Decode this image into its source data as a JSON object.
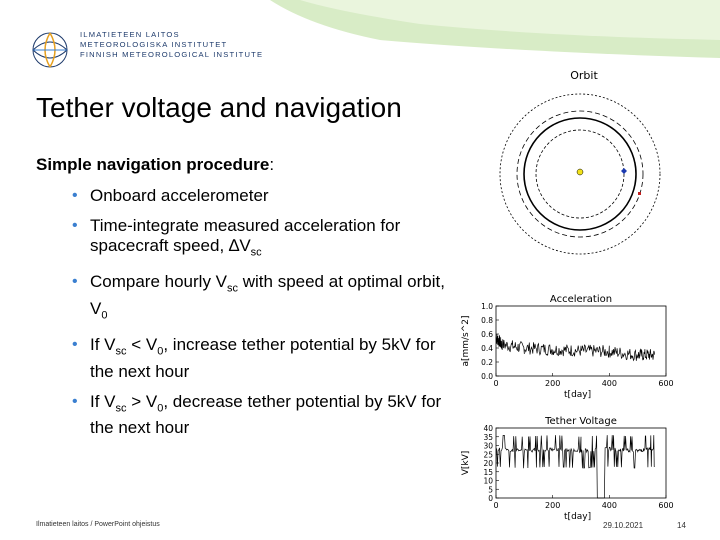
{
  "header": {
    "logo": "fmi-logo-icon",
    "institute_lines": [
      "ILMATIETEEN LAITOS",
      "METEOROLOGISKA INSTITUTET",
      "FINNISH METEOROLOGICAL INSTITUTE"
    ],
    "accent_color": "#c9e4b3"
  },
  "slide": {
    "title": "Tether voltage and navigation",
    "subtitle_bold": "Simple navigation procedure",
    "subtitle_rest": ":",
    "bullets": [
      {
        "pre": "Onboard accelerometer"
      },
      {
        "pre": "Time-integrate measured acceleration for spacecraft speed, ∆V",
        "sub": "sc",
        "post": ""
      },
      {
        "pre": "Compare hourly V",
        "sub": "sc",
        "post": " with speed at optimal orbit, V",
        "sub2": "0"
      },
      {
        "pre": "If V",
        "sub": "sc",
        "post": " < V",
        "sub2": "0",
        "post2": ", increase tether potential by 5kV for the next hour"
      },
      {
        "pre": "If V",
        "sub": "sc",
        "post": " > V",
        "sub2": "0",
        "post2": ", decrease tether potential by 5kV for the next hour"
      }
    ]
  },
  "orbit_panel": {
    "title": "Orbit"
  },
  "chart_data": [
    {
      "type": "line",
      "title": "Acceleration",
      "xlabel": "t[day]",
      "ylabel": "a[mm/s^2]",
      "xlim": [
        0,
        600
      ],
      "ylim": [
        0.0,
        1.0
      ],
      "xticks": [
        "0",
        "200",
        "400",
        "600"
      ],
      "yticks": [
        "0.0",
        "0.2",
        "0.4",
        "0.6",
        "0.8",
        "1.0"
      ],
      "series": [
        {
          "values_description": "noisy",
          "x": [
            0,
            20,
            100,
            200,
            300,
            400,
            500,
            560
          ],
          "y": [
            0.55,
            0.45,
            0.4,
            0.38,
            0.36,
            0.35,
            0.3,
            0.3
          ]
        }
      ]
    },
    {
      "type": "line",
      "title": "Tether Voltage",
      "xlabel": "t[day]",
      "ylabel": "V[kV]",
      "xlim": [
        0,
        600
      ],
      "ylim": [
        0,
        40
      ],
      "xticks": [
        "0",
        "200",
        "400",
        "600"
      ],
      "yticks": [
        "0",
        "5",
        "10",
        "15",
        "20",
        "25",
        "30",
        "35",
        "40"
      ],
      "series": [
        {
          "x": [
            0,
            100,
            200,
            300,
            400,
            500,
            560
          ],
          "y": [
            28,
            27,
            28,
            27,
            28,
            27,
            28
          ]
        }
      ]
    }
  ],
  "footer": {
    "left": "Ilmatieteen laitos / PowerPoint ohjeistus",
    "date": "29.10.2021",
    "page": "14"
  }
}
